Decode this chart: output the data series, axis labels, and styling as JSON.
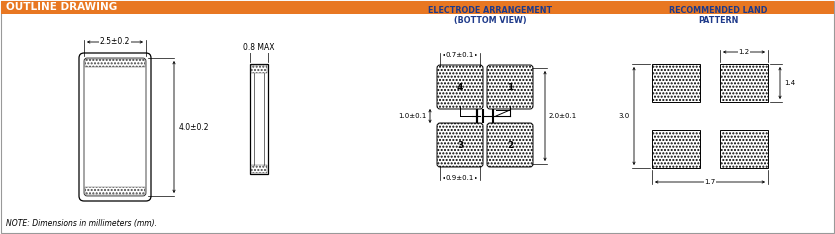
{
  "title": "OUTLINE DRAWING",
  "title_bg": "#E87722",
  "title_color": "#FFFFFF",
  "body_bg": "#FFFFFF",
  "line_color": "#000000",
  "blue_label_color": "#1E3A8A",
  "note_text": "NOTE: Dimensions in millimeters (mm).",
  "sec1_title": "ELECTRODE ARRANGEMENT\n(BOTTOM VIEW)",
  "sec2_title": "RECOMMENDED LAND\nPATTERN",
  "dim_25": "2.5±0.2",
  "dim_40": "4.0±0.2",
  "dim_08": "0.8 MAX",
  "dim_07": "0.7±0.1",
  "dim_20": "2.0±0.1",
  "dim_10": "1.0±0.1",
  "dim_09": "0.9±0.1",
  "dim_12": "1.2",
  "dim_14": "1.4",
  "dim_30": "3.0",
  "dim_17": "1.7"
}
